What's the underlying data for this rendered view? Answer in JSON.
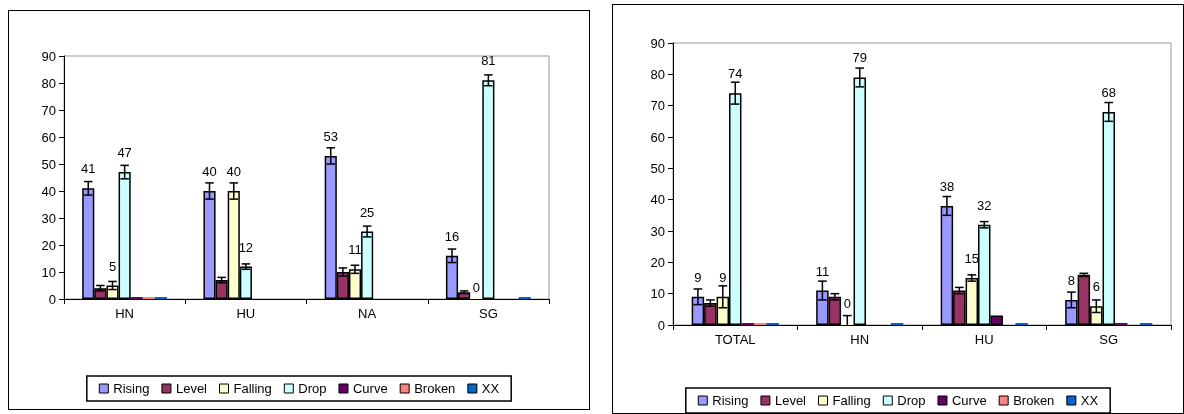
{
  "chart_data": [
    {
      "type": "bar",
      "categories": [
        "HN",
        "HU",
        "NA",
        "SG"
      ],
      "ylim": [
        0,
        90
      ],
      "yticks": [
        0,
        10,
        20,
        30,
        40,
        50,
        60,
        70,
        80,
        90
      ],
      "grid": false,
      "legend": "bottom",
      "series": [
        {
          "name": "Rising",
          "color": "#9999ff",
          "values": [
            41,
            40,
            53,
            16
          ],
          "errors": [
            2.5,
            3,
            3,
            2.5
          ],
          "value_labels": [
            "41",
            "40",
            "53",
            "16"
          ]
        },
        {
          "name": "Level",
          "color": "#993366",
          "values": [
            4,
            7,
            10,
            2.5
          ],
          "errors": [
            1,
            1,
            1.5,
            0.5
          ]
        },
        {
          "name": "Falling",
          "color": "#ffffcc",
          "values": [
            5,
            40,
            11,
            0
          ],
          "errors": [
            1.5,
            3,
            1.5,
            null
          ],
          "value_labels": [
            "5",
            "40",
            "11",
            "0"
          ]
        },
        {
          "name": "Drop",
          "color": "#ccffff",
          "values": [
            47,
            12,
            25,
            81
          ],
          "errors": [
            2.5,
            1,
            2,
            2
          ],
          "value_labels": [
            "47",
            "12",
            "25",
            "81"
          ]
        },
        {
          "name": "Curve",
          "color": "#660066",
          "values": [
            0.5,
            null,
            null,
            null
          ]
        },
        {
          "name": "Broken",
          "color": "#ff8080",
          "values": [
            0.5,
            null,
            null,
            null
          ]
        },
        {
          "name": "XX",
          "color": "#0066cc",
          "values": [
            0.5,
            null,
            null,
            0.5
          ]
        }
      ]
    },
    {
      "type": "bar",
      "categories": [
        "TOTAL",
        "HN",
        "HU",
        "SG"
      ],
      "ylim": [
        0,
        90
      ],
      "yticks": [
        0,
        10,
        20,
        30,
        40,
        50,
        60,
        70,
        80,
        90
      ],
      "grid": false,
      "legend": "bottom",
      "series": [
        {
          "name": "Rising",
          "color": "#9999ff",
          "values": [
            9,
            11,
            38,
            8
          ],
          "errors": [
            2.5,
            3,
            3,
            2.5
          ],
          "value_labels": [
            "9",
            "11",
            "38",
            "8"
          ]
        },
        {
          "name": "Level",
          "color": "#993366",
          "values": [
            7,
            9,
            11,
            16
          ],
          "errors": [
            1,
            1,
            1,
            0.5
          ]
        },
        {
          "name": "Falling",
          "color": "#ffffcc",
          "values": [
            9,
            0,
            15,
            6
          ],
          "errors": [
            3.5,
            3,
            1,
            2
          ],
          "value_labels": [
            "9",
            "0",
            "15",
            "6"
          ]
        },
        {
          "name": "Drop",
          "color": "#ccffff",
          "values": [
            74,
            79,
            32,
            68
          ],
          "errors": [
            3.5,
            3,
            1,
            3
          ],
          "value_labels": [
            "74",
            "79",
            "32",
            "68"
          ]
        },
        {
          "name": "Curve",
          "color": "#660066",
          "values": [
            0.5,
            null,
            3,
            0.5
          ]
        },
        {
          "name": "Broken",
          "color": "#ff8080",
          "values": [
            0.3,
            null,
            null,
            null
          ]
        },
        {
          "name": "XX",
          "color": "#0066cc",
          "values": [
            0.3,
            0.5,
            0.5,
            0.5
          ]
        }
      ]
    }
  ]
}
